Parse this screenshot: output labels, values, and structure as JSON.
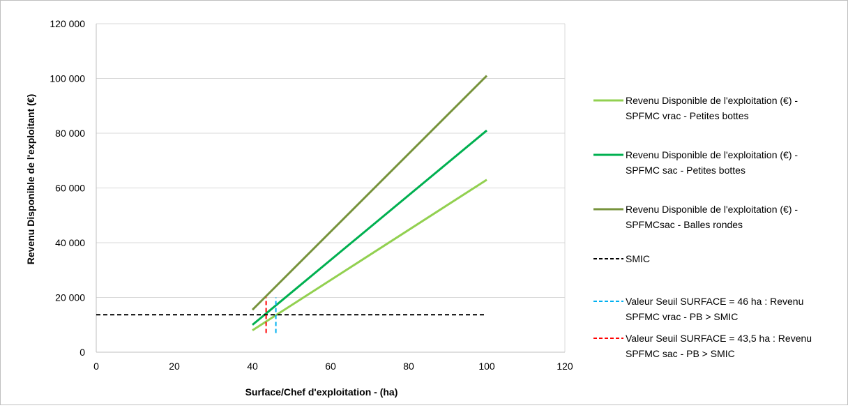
{
  "chart_data": {
    "type": "line",
    "xlabel": "Surface/Chef d'exploitation - (ha)",
    "ylabel": "Revenu Disponible de l'exploitant (€)",
    "xlim": [
      0,
      120
    ],
    "ylim": [
      0,
      120000
    ],
    "x_ticks": [
      "0",
      "20",
      "40",
      "60",
      "80",
      "100",
      "120"
    ],
    "y_ticks": [
      "0",
      "20 000",
      "40 000",
      "60 000",
      "80 000",
      "100 000",
      "120 000"
    ],
    "grid": "horizontal",
    "legend_position": "right",
    "series": [
      {
        "name_lines": [
          "Revenu Disponible de l'exploitation (€) -",
          "SPFMC vrac - Petites bottes"
        ],
        "color": "#92d050",
        "style": "solid",
        "points": [
          [
            40,
            8000
          ],
          [
            100,
            63000
          ]
        ]
      },
      {
        "name_lines": [
          "Revenu Disponible de l'exploitation (€) -",
          "SPFMC sac - Petites bottes"
        ],
        "color": "#00b050",
        "style": "solid",
        "points": [
          [
            40,
            10000
          ],
          [
            100,
            81000
          ]
        ]
      },
      {
        "name_lines": [
          "Revenu Disponible de l'exploitation (€) -",
          "SPFMCsac - Balles rondes"
        ],
        "color": "#77933c",
        "style": "solid",
        "points": [
          [
            40,
            15500
          ],
          [
            100,
            101000
          ]
        ]
      },
      {
        "name_lines": [
          "SMIC"
        ],
        "color": "#000000",
        "style": "dashed",
        "points": [
          [
            0,
            13700
          ],
          [
            100,
            13700
          ]
        ]
      },
      {
        "name_lines": [
          "Valeur Seuil SURFACE = 46 ha : Revenu",
          "SPFMC vrac - PB > SMIC"
        ],
        "color": "#00b0f0",
        "style": "dashed",
        "points": [
          [
            46,
            7000
          ],
          [
            46,
            20000
          ]
        ]
      },
      {
        "name_lines": [
          "Valeur Seuil SURFACE = 43,5 ha : Revenu",
          "SPFMC sac - PB > SMIC"
        ],
        "color": "#ff0000",
        "style": "dashed",
        "points": [
          [
            43.5,
            7000
          ],
          [
            43.5,
            20000
          ]
        ]
      }
    ]
  }
}
